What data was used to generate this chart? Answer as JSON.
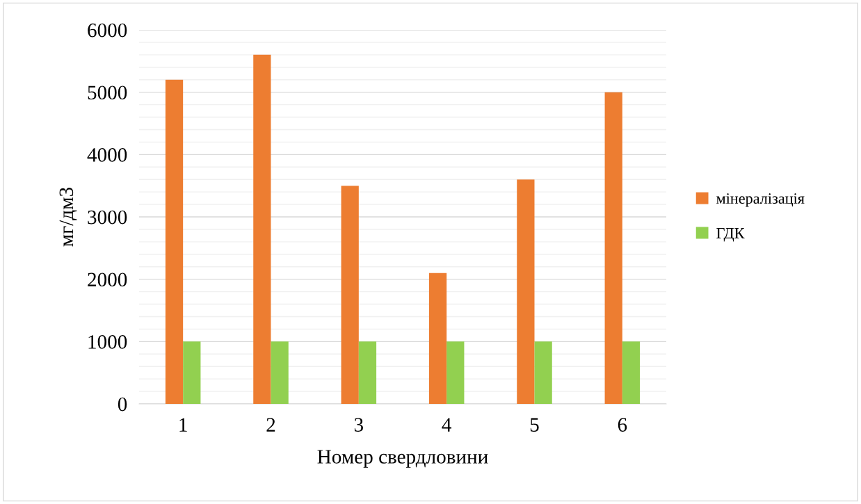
{
  "chart_data": {
    "type": "bar",
    "xlabel": "Номер свердловини",
    "ylabel": "мг/дм3",
    "categories": [
      "1",
      "2",
      "3",
      "4",
      "5",
      "6"
    ],
    "series": [
      {
        "name": "мінералізація",
        "color": "#ed7d31",
        "values": [
          5200,
          5600,
          3500,
          2100,
          3600,
          5000
        ]
      },
      {
        "name": "ГДК",
        "color": "#92d050",
        "values": [
          1000,
          1000,
          1000,
          1000,
          1000,
          1000
        ]
      }
    ],
    "ylim": [
      0,
      6000
    ],
    "yticks": [
      0,
      {
        "value": 200,
        "label": null
      },
      {
        "value": 400,
        "label": null
      },
      {
        "value": 600,
        "label": null
      },
      {
        "value": 800,
        "label": null
      },
      1000,
      {
        "value": 1200,
        "label": null
      },
      {
        "value": 1400,
        "label": null
      },
      {
        "value": 1600,
        "label": null
      },
      {
        "value": 1800,
        "label": null
      },
      2000,
      {
        "value": 2200,
        "label": null
      },
      {
        "value": 2400,
        "label": null
      },
      {
        "value": 2600,
        "label": null
      },
      {
        "value": 2800,
        "label": null
      },
      3000,
      {
        "value": 3200,
        "label": null
      },
      {
        "value": 3400,
        "label": null
      },
      {
        "value": 3600,
        "label": null
      },
      {
        "value": 3800,
        "label": null
      },
      4000,
      {
        "value": 4200,
        "label": null
      },
      {
        "value": 4400,
        "label": null
      },
      {
        "value": 4600,
        "label": null
      },
      {
        "value": 4800,
        "label": null
      },
      5000,
      {
        "value": 5200,
        "label": null
      },
      {
        "value": 5400,
        "label": null
      },
      {
        "value": 5600,
        "label": null
      },
      {
        "value": 5800,
        "label": null
      },
      6000
    ],
    "grid": "y",
    "legend": "right"
  }
}
